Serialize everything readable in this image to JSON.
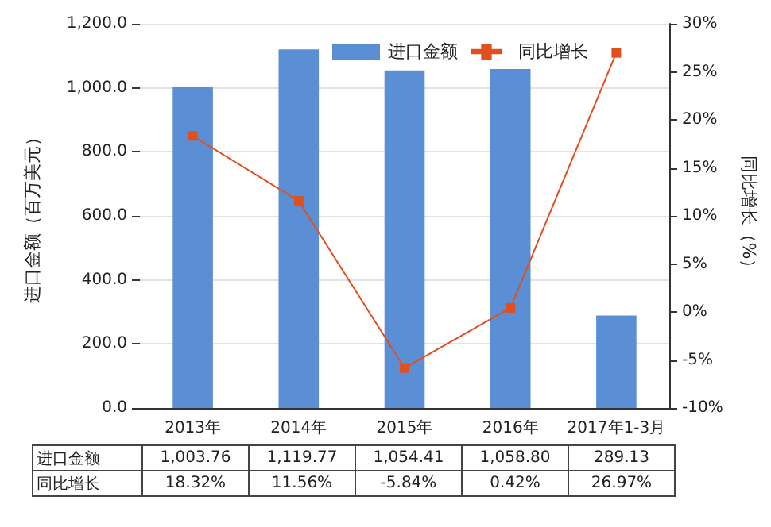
{
  "chart_data": {
    "type": "bar",
    "categories": [
      "2013年",
      "2014年",
      "2015年",
      "2016年",
      "2017年1-3月"
    ],
    "ylabel": "进口金额（百万美元）",
    "y2label": "同比增长（%）",
    "series": [
      {
        "name": "进口金额",
        "color": "#5a8fd5",
        "values": [
          1003.76,
          1119.77,
          1054.41,
          1058.8,
          289.13
        ],
        "value_labels": [
          "1,003.76",
          "1,119.77",
          "1,054.41",
          "1,058.80",
          "289.13"
        ]
      },
      {
        "name": "同比增长",
        "type": "line",
        "axis": "y2",
        "color": "#e0501e",
        "marker": "square",
        "values": [
          18.32,
          11.56,
          -5.84,
          0.42,
          26.97
        ],
        "value_labels": [
          "18.32%",
          "11.56%",
          "-5.84%",
          "0.42%",
          "26.97%"
        ]
      }
    ],
    "ylim": [
      0,
      1200
    ],
    "yticks": [
      {
        "value": 0,
        "label": "0.0"
      },
      {
        "value": 200,
        "label": "200.0"
      },
      {
        "value": 400,
        "label": "400.0"
      },
      {
        "value": 600,
        "label": "600.0"
      },
      {
        "value": 800,
        "label": "800.0"
      },
      {
        "value": 1000,
        "label": "1,000.0"
      },
      {
        "value": 1200,
        "label": "1,200.0"
      }
    ],
    "y2lim": [
      -10,
      30
    ],
    "y2ticks": [
      {
        "value": -10,
        "label": "-10%"
      },
      {
        "value": -5,
        "label": "-5%"
      },
      {
        "value": 0,
        "label": "0%"
      },
      {
        "value": 5,
        "label": "5%"
      },
      {
        "value": 10,
        "label": "10%"
      },
      {
        "value": 15,
        "label": "15%"
      },
      {
        "value": 20,
        "label": "20%"
      },
      {
        "value": 25,
        "label": "25%"
      },
      {
        "value": 30,
        "label": "30%"
      }
    ],
    "grid": "y",
    "legend": "top right"
  }
}
